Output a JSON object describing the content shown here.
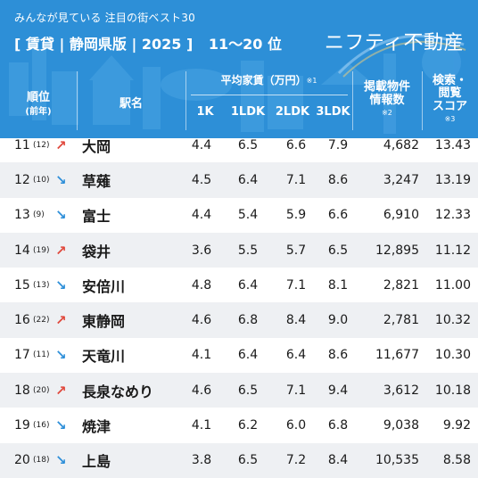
{
  "header": {
    "subtitle": "みんなが見ている 注目の街ベスト30",
    "category": "[ 賃貸 | 静岡県版 | 2025 ]",
    "range": "11〜20 位",
    "brand": "ニフティ不動産"
  },
  "columns": {
    "rank": "順位",
    "rank_sub": "(前年)",
    "station": "駅名",
    "rent": "平均家賃（万円）",
    "rent_note": "※1",
    "k1": "1K",
    "k1ldk": "1LDK",
    "k2ldk": "2LDK",
    "k3ldk": "3LDK",
    "listings_l1": "掲載物件",
    "listings_l2": "情報数",
    "listings_note": "※2",
    "search_l1": "検索・",
    "search_l2": "閲覧",
    "search_l3": "スコア",
    "search_note": "※3"
  },
  "colors": {
    "header_bg": "#2d8fd7",
    "up": "#e0483c",
    "down": "#2e8fd9",
    "alt_row": "#eef0f3"
  },
  "rows": [
    {
      "rank": "11",
      "prev": "(12)",
      "trend": "up",
      "arrow": "↗",
      "name": "大岡",
      "k1": "4.4",
      "k1ldk": "6.5",
      "k2ldk": "6.6",
      "k3ldk": "7.9",
      "listings": "4,682",
      "score": "13.43"
    },
    {
      "rank": "12",
      "prev": "(10)",
      "trend": "down",
      "arrow": "↘",
      "name": "草薙",
      "k1": "4.5",
      "k1ldk": "6.4",
      "k2ldk": "7.1",
      "k3ldk": "8.6",
      "listings": "3,247",
      "score": "13.19"
    },
    {
      "rank": "13",
      "prev": "(9)",
      "trend": "down",
      "arrow": "↘",
      "name": "富士",
      "k1": "4.4",
      "k1ldk": "5.4",
      "k2ldk": "5.9",
      "k3ldk": "6.6",
      "listings": "6,910",
      "score": "12.33"
    },
    {
      "rank": "14",
      "prev": "(19)",
      "trend": "up",
      "arrow": "↗",
      "name": "袋井",
      "k1": "3.6",
      "k1ldk": "5.5",
      "k2ldk": "5.7",
      "k3ldk": "6.5",
      "listings": "12,895",
      "score": "11.12"
    },
    {
      "rank": "15",
      "prev": "(13)",
      "trend": "down",
      "arrow": "↘",
      "name": "安倍川",
      "k1": "4.8",
      "k1ldk": "6.4",
      "k2ldk": "7.1",
      "k3ldk": "8.1",
      "listings": "2,821",
      "score": "11.00"
    },
    {
      "rank": "16",
      "prev": "(22)",
      "trend": "up",
      "arrow": "↗",
      "name": "東静岡",
      "k1": "4.6",
      "k1ldk": "6.8",
      "k2ldk": "8.4",
      "k3ldk": "9.0",
      "listings": "2,781",
      "score": "10.32"
    },
    {
      "rank": "17",
      "prev": "(11)",
      "trend": "down",
      "arrow": "↘",
      "name": "天竜川",
      "k1": "4.1",
      "k1ldk": "6.4",
      "k2ldk": "6.4",
      "k3ldk": "8.6",
      "listings": "11,677",
      "score": "10.30"
    },
    {
      "rank": "18",
      "prev": "(20)",
      "trend": "up",
      "arrow": "↗",
      "name": "長泉なめり",
      "k1": "4.6",
      "k1ldk": "6.5",
      "k2ldk": "7.1",
      "k3ldk": "9.4",
      "listings": "3,612",
      "score": "10.18"
    },
    {
      "rank": "19",
      "prev": "(16)",
      "trend": "down",
      "arrow": "↘",
      "name": "焼津",
      "k1": "4.1",
      "k1ldk": "6.2",
      "k2ldk": "6.0",
      "k3ldk": "6.8",
      "listings": "9,038",
      "score": "9.92"
    },
    {
      "rank": "20",
      "prev": "(18)",
      "trend": "down",
      "arrow": "↘",
      "name": "上島",
      "k1": "3.8",
      "k1ldk": "6.5",
      "k2ldk": "7.2",
      "k3ldk": "8.4",
      "listings": "10,535",
      "score": "8.58"
    }
  ]
}
